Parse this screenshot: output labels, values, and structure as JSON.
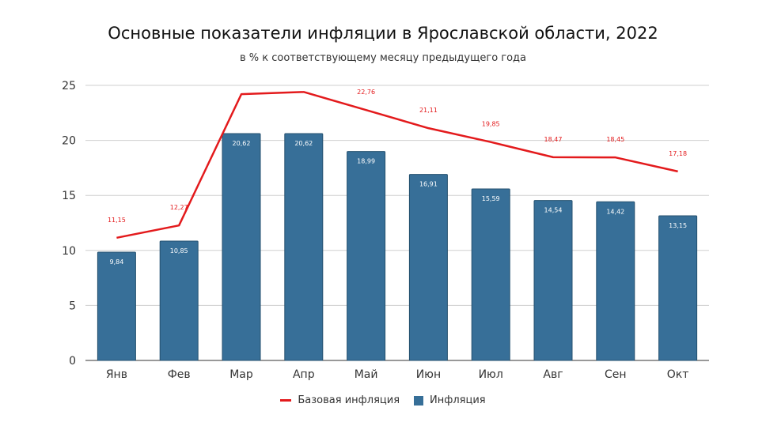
{
  "chart_data": {
    "type": "bar",
    "title": "Основные показатели инфляции в Ярославской области, 2022",
    "subtitle": "в % к соответствующему месяцу предыдущего года",
    "categories": [
      "Янв",
      "Фев",
      "Мар",
      "Апр",
      "Май",
      "Июн",
      "Июл",
      "Авг",
      "Сен",
      "Окт"
    ],
    "ylim": [
      0,
      25
    ],
    "yticks": [
      0,
      5,
      10,
      15,
      20,
      25
    ],
    "grid": true,
    "legend_position": "bottom",
    "series": [
      {
        "name": "Базовая инфляция",
        "type": "line",
        "color": "#e31a1c",
        "values": [
          11.15,
          12.27,
          24.2,
          24.4,
          22.76,
          21.11,
          19.85,
          18.47,
          18.45,
          17.18
        ],
        "labels": [
          "11,15",
          "12,27",
          "",
          "",
          "22,76",
          "21,11",
          "19,85",
          "18,47",
          "18,45",
          "17,18"
        ]
      },
      {
        "name": "Инфляция",
        "type": "bar",
        "color": "#376f98",
        "values": [
          9.84,
          10.85,
          20.62,
          20.62,
          18.99,
          16.91,
          15.59,
          14.54,
          14.42,
          13.15
        ],
        "labels": [
          "9,84",
          "10,85",
          "20,62",
          "20,62",
          "18,99",
          "16,91",
          "15,59",
          "14,54",
          "14,42",
          "13,15"
        ]
      }
    ]
  }
}
